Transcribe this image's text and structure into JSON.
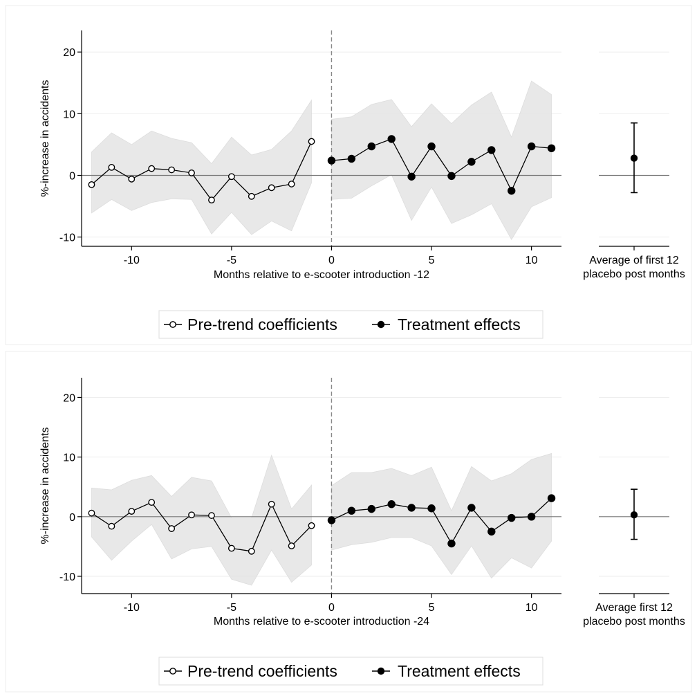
{
  "chart_data": [
    {
      "type": "line",
      "panel": "top",
      "title": "",
      "xlabel": "Months relative to e-scooter introduction -12",
      "ylabel": "%-increase in accidents",
      "xlim": [
        -12.5,
        11.5
      ],
      "ylim": [
        -11.5,
        23.5
      ],
      "xticks": [
        -10,
        -5,
        0,
        5,
        10
      ],
      "yticks": [
        -10,
        0,
        10,
        20
      ],
      "grid": true,
      "reference_lines": {
        "y": 0,
        "x": 0
      },
      "series": [
        {
          "name": "Pre-trend coefficients",
          "marker": "hollow-circle",
          "x": [
            -12,
            -11,
            -10,
            -9,
            -8,
            -7,
            -6,
            -5,
            -4,
            -3,
            -2,
            -1
          ],
          "y": [
            -1.5,
            1.3,
            -0.6,
            1.1,
            0.9,
            0.4,
            -4.0,
            -0.2,
            -3.4,
            -2.0,
            -1.4,
            5.5
          ],
          "ci_low": [
            -6.1,
            -3.9,
            -5.7,
            -4.4,
            -3.8,
            -3.9,
            -9.5,
            -6.0,
            -9.6,
            -7.4,
            -9.0,
            -1.2
          ],
          "ci_high": [
            3.8,
            6.9,
            5.0,
            7.2,
            6.0,
            5.3,
            1.9,
            6.2,
            3.3,
            4.2,
            7.2,
            12.2
          ]
        },
        {
          "name": "Treatment effects",
          "marker": "filled-circle",
          "x": [
            0,
            1,
            2,
            3,
            4,
            5,
            6,
            7,
            8,
            9,
            10,
            11
          ],
          "y": [
            2.4,
            2.7,
            4.7,
            5.9,
            -0.2,
            4.7,
            -0.1,
            2.2,
            4.1,
            -2.5,
            4.7,
            4.4
          ],
          "ci_low": [
            -3.9,
            -3.7,
            -1.7,
            0.1,
            -7.3,
            -1.9,
            -7.8,
            -6.4,
            -4.6,
            -10.4,
            -5.1,
            -3.6
          ],
          "ci_high": [
            9.1,
            9.5,
            11.5,
            12.3,
            7.9,
            11.6,
            8.4,
            11.4,
            13.5,
            6.2,
            15.3,
            13.1
          ]
        }
      ],
      "summary": {
        "label_lines": [
          "Average of first 12",
          "placebo post months"
        ],
        "estimate": 2.8,
        "ci": [
          -2.8,
          8.5
        ]
      },
      "legend": {
        "placement": "bottom",
        "entries": [
          "Pre-trend coefficients",
          "Treatment effects"
        ]
      }
    },
    {
      "type": "line",
      "panel": "bottom",
      "title": "",
      "xlabel": "Months relative to e-scooter introduction -24",
      "ylabel": "%-increase in accidents",
      "xlim": [
        -12.5,
        11.5
      ],
      "ylim": [
        -12.9,
        23.3
      ],
      "xticks": [
        -10,
        -5,
        0,
        5,
        10
      ],
      "yticks": [
        -10,
        0,
        10,
        20
      ],
      "grid": true,
      "reference_lines": {
        "y": 0,
        "x": 0
      },
      "series": [
        {
          "name": "Pre-trend coefficients",
          "marker": "hollow-circle",
          "x": [
            -12,
            -11,
            -10,
            -9,
            -8,
            -7,
            -6,
            -5,
            -4,
            -3,
            -2,
            -1
          ],
          "y": [
            0.6,
            -1.6,
            0.9,
            2.4,
            -2.0,
            0.3,
            0.2,
            -5.3,
            -5.8,
            2.1,
            -4.9,
            -1.5
          ],
          "ci_low": [
            -3.4,
            -7.3,
            -4.1,
            -1.3,
            -7.1,
            -5.4,
            -5.0,
            -10.5,
            -11.5,
            -5.6,
            -11.0,
            -8.1
          ],
          "ci_high": [
            4.8,
            4.5,
            6.1,
            6.9,
            3.4,
            6.6,
            6.0,
            -0.2,
            -0.2,
            10.3,
            1.3,
            5.3
          ]
        },
        {
          "name": "Treatment effects",
          "marker": "filled-circle",
          "x": [
            0,
            1,
            2,
            3,
            4,
            5,
            6,
            7,
            8,
            9,
            10,
            11
          ],
          "y": [
            -0.6,
            1.0,
            1.3,
            2.1,
            1.5,
            1.4,
            -4.5,
            1.5,
            -2.5,
            -0.2,
            0.0,
            3.1
          ],
          "ci_low": [
            -5.6,
            -4.7,
            -4.3,
            -3.5,
            -3.5,
            -4.9,
            -9.7,
            -4.9,
            -10.3,
            -6.9,
            -8.6,
            -4.1
          ],
          "ci_high": [
            5.2,
            7.4,
            7.4,
            8.1,
            6.9,
            8.3,
            1.0,
            8.4,
            6.0,
            7.2,
            9.6,
            10.6
          ]
        }
      ],
      "summary": {
        "label_lines": [
          "Average first 12",
          "placebo post months"
        ],
        "estimate": 0.3,
        "ci": [
          -3.8,
          4.6
        ]
      },
      "legend": {
        "placement": "bottom",
        "entries": [
          "Pre-trend coefficients",
          "Treatment effects"
        ]
      }
    }
  ]
}
